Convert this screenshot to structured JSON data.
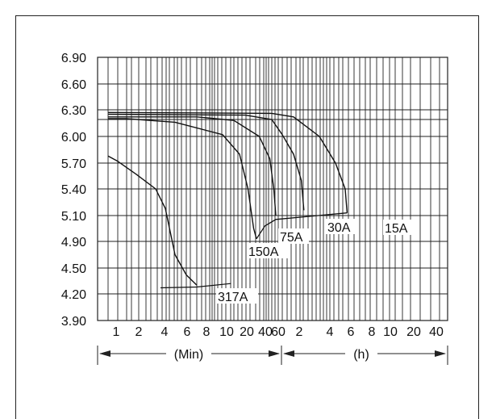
{
  "chart_data": {
    "type": "line",
    "title": "",
    "xlabel": "",
    "ylabel": "",
    "ylim": [
      3.9,
      6.9
    ],
    "y_ticks": [
      "6.90",
      "6.60",
      "6.30",
      "6.00",
      "5.70",
      "5.40",
      "5.10",
      "4.90",
      "4.50",
      "4.20",
      "3.90"
    ],
    "x_ticks_min": [
      "1",
      "2",
      "4",
      "6",
      "8",
      "10",
      "20",
      "40",
      "60"
    ],
    "x_ticks_h": [
      "2",
      "4",
      "6",
      "8",
      "10",
      "20",
      "40"
    ],
    "x_unit_min": "(Min)",
    "x_unit_h": "(h)",
    "series": [
      {
        "name": "317A",
        "label": "317A",
        "points": [
          [
            1,
            5.78
          ],
          [
            2,
            5.72
          ],
          [
            4,
            5.57
          ],
          [
            6,
            5.4
          ],
          [
            7,
            5.18
          ],
          [
            8,
            4.7
          ],
          [
            9,
            4.42
          ],
          [
            10,
            4.3
          ]
        ],
        "tail": [
          [
            6.5,
            4.27
          ],
          [
            10,
            4.28
          ],
          [
            14.5,
            4.32
          ]
        ]
      },
      {
        "name": "150A",
        "label": "150A",
        "points": [
          [
            1,
            6.2
          ],
          [
            3,
            6.2
          ],
          [
            8,
            6.16
          ],
          [
            13,
            6.02
          ],
          [
            16,
            5.8
          ],
          [
            17.5,
            5.4
          ],
          [
            18.5,
            5.0
          ],
          [
            19,
            4.92
          ]
        ]
      },
      {
        "name": "75A",
        "label": "75A",
        "points": [
          [
            1,
            6.22
          ],
          [
            10,
            6.22
          ],
          [
            15,
            6.18
          ],
          [
            19.5,
            6.0
          ],
          [
            21.5,
            5.75
          ],
          [
            22.5,
            5.4
          ],
          [
            23,
            5.1
          ]
        ]
      },
      {
        "name": "30A",
        "label": "30A",
        "points": [
          [
            1,
            6.25
          ],
          [
            17,
            6.24
          ],
          [
            22,
            6.19
          ],
          [
            25,
            6.02
          ],
          [
            27,
            5.8
          ],
          [
            28.2,
            5.5
          ],
          [
            28.6,
            5.16
          ]
        ]
      },
      {
        "name": "15A",
        "label": "15A",
        "points": [
          [
            1,
            6.27
          ],
          [
            22,
            6.26
          ],
          [
            27,
            6.22
          ],
          [
            31,
            6.0
          ],
          [
            33.5,
            5.7
          ],
          [
            35,
            5.4
          ],
          [
            35.3,
            5.13
          ]
        ]
      }
    ],
    "end_curve": [
      [
        19,
        4.92
      ],
      [
        20.5,
        5.02
      ],
      [
        23,
        5.07
      ],
      [
        28.6,
        5.09
      ],
      [
        35.3,
        5.13
      ]
    ]
  }
}
